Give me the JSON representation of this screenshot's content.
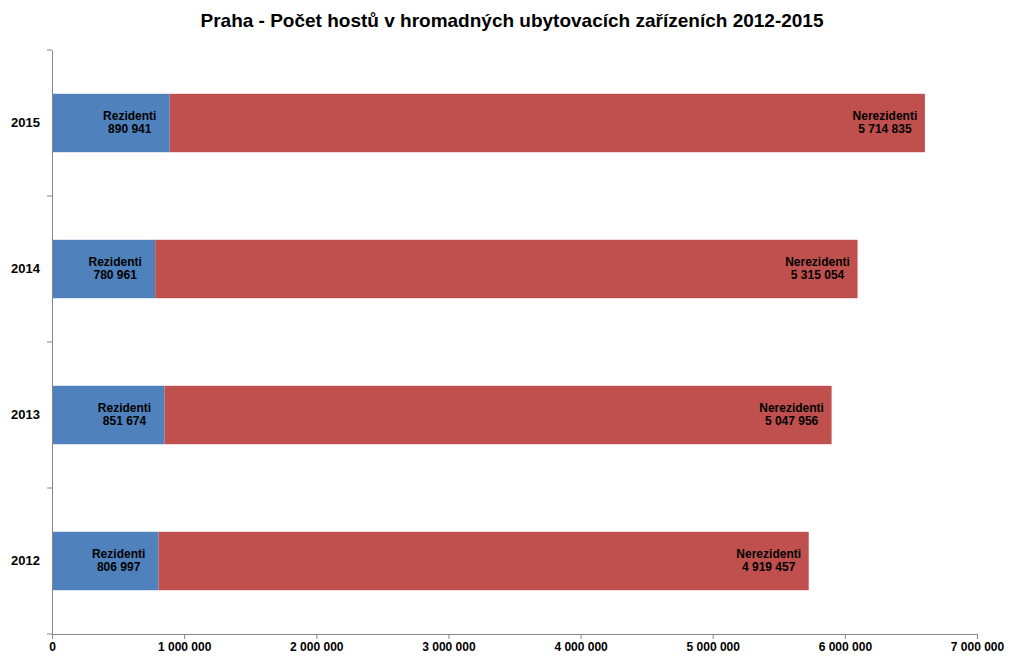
{
  "chart_data": {
    "type": "bar",
    "title": "Praha - Počet hostů v hromadných ubytovacích zařízeních 2012-2015",
    "orientation": "horizontal",
    "stacked": true,
    "data_labels": true,
    "grid": false,
    "categories": [
      "2012",
      "2013",
      "2014",
      "2015"
    ],
    "series": [
      {
        "name": "Rezidenti",
        "color": "#4f81bd",
        "values": [
          806997,
          851674,
          780961,
          890941
        ],
        "value_labels": [
          "806 997",
          "851 674",
          "780 961",
          "890 941"
        ]
      },
      {
        "name": "Nerezidenti",
        "color": "#c0504d",
        "values": [
          4919457,
          5047956,
          5315054,
          5714835
        ],
        "value_labels": [
          "4 919 457",
          "5 047 956",
          "5 315 054",
          "5 714 835"
        ]
      }
    ],
    "xlim": [
      0,
      7000000
    ],
    "xticks": [
      0,
      {
        "value": 1000000,
        "label": "1 000 000"
      },
      {
        "value": 2000000,
        "label": "2 000 000"
      },
      {
        "value": 3000000,
        "label": "3 000 000"
      },
      {
        "value": 4000000,
        "label": "4 000 000"
      },
      {
        "value": 5000000,
        "label": "5 000 000"
      },
      {
        "value": 6000000,
        "label": "6 000 000"
      },
      {
        "value": 7000000,
        "label": "7 000 000"
      }
    ]
  }
}
